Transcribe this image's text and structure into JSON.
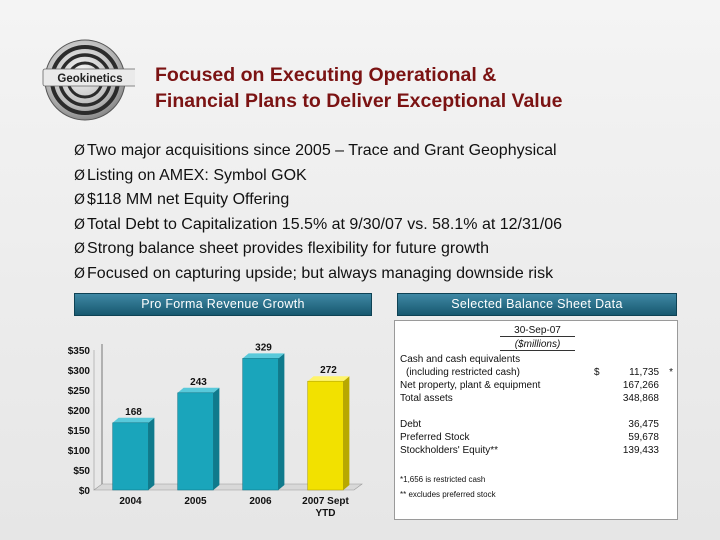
{
  "logo": {
    "text": "Geokinetics"
  },
  "title": {
    "line1": "Focused on Executing Operational &",
    "line2": "Financial Plans to Deliver Exceptional Value"
  },
  "bullets": [
    "Two major acquisitions since 2005 – Trace and Grant Geophysical",
    "Listing on AMEX: Symbol GOK",
    "$118 MM net Equity Offering",
    "Total Debt to Capitalization 15.5% at 9/30/07 vs. 58.1% at 12/31/06",
    "Strong balance sheet provides flexibility for future growth",
    "Focused on capturing upside; but always managing downside risk"
  ],
  "bullet_glyph": "Ø",
  "sections": {
    "left_header": "Pro Forma Revenue Growth",
    "right_header": "Selected Balance Sheet Data"
  },
  "chart_data": {
    "type": "bar",
    "categories": [
      "2004",
      "2005",
      "2006",
      "2007 Sept"
    ],
    "category_sub": [
      "",
      "",
      "",
      "YTD"
    ],
    "values": [
      168,
      243,
      329,
      272
    ],
    "data_labels": [
      "168",
      "243",
      "329",
      "272"
    ],
    "ylim": [
      0,
      350
    ],
    "yticks": [
      "$0",
      "$50",
      "$100",
      "$150",
      "$200",
      "$250",
      "$300",
      "$350"
    ],
    "grid": false,
    "colors": [
      "#1aa5bb",
      "#1aa5bb",
      "#1aa5bb",
      "#f2e100"
    ]
  },
  "balance_sheet": {
    "date_header": "30-Sep-07",
    "units": "($millions)",
    "rows": [
      {
        "label": "Cash and cash equivalents",
        "dollar": "",
        "value": "",
        "note": ""
      },
      {
        "label": "  (including restricted cash)",
        "dollar": "$",
        "value": "11,735",
        "note": "*"
      },
      {
        "label": "Net property, plant & equipment",
        "dollar": "",
        "value": "167,266",
        "note": ""
      },
      {
        "label": "Total assets",
        "dollar": "",
        "value": "348,868",
        "note": ""
      },
      {
        "label": "Debt",
        "dollar": "",
        "value": "36,475",
        "note": ""
      },
      {
        "label": "Preferred Stock",
        "dollar": "",
        "value": "59,678",
        "note": ""
      },
      {
        "label": "Stockholders' Equity**",
        "dollar": "",
        "value": "139,433",
        "note": ""
      }
    ],
    "footnotes": [
      "*1,656 is restricted cash",
      "** excludes preferred stock"
    ]
  }
}
